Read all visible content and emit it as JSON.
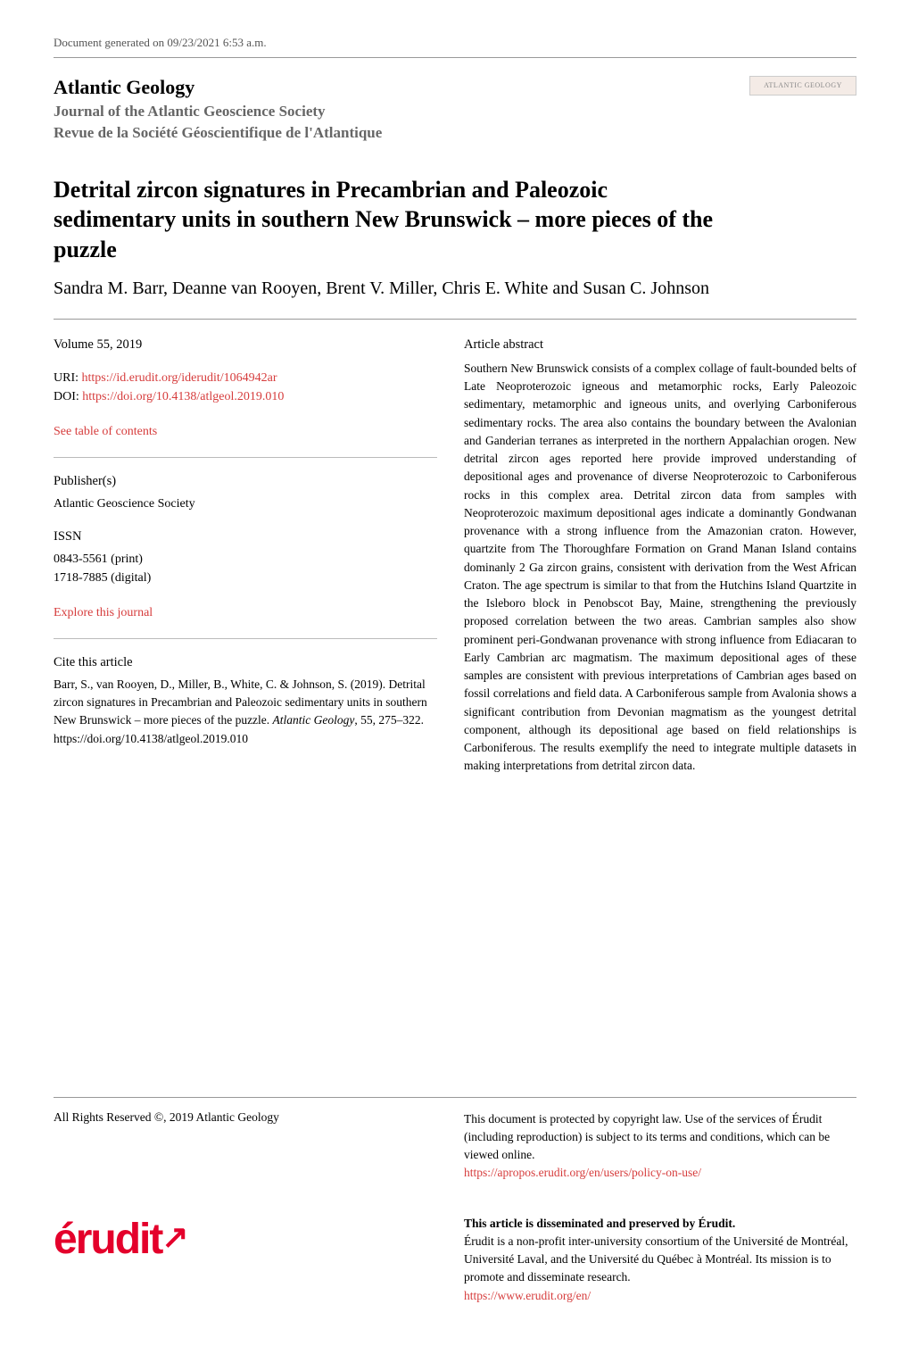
{
  "docGenerated": "Document generated on 09/23/2021 6:53 a.m.",
  "journalTitle": "Atlantic Geology",
  "journalSub1": "Journal of the Atlantic Geoscience Society",
  "journalSub2": "Revue de la Société Géoscientifique de l'Atlantique",
  "logoText": "ATLANTIC GEOLOGY",
  "articleTitle": "Detrital zircon signatures in Precambrian and Paleozoic sedimentary units in southern New Brunswick – more pieces of the puzzle",
  "authors": "Sandra M. Barr, Deanne van Rooyen, Brent V. Miller, Chris E. White and Susan C. Johnson",
  "volumeLine": "Volume 55, 2019",
  "uriLabel": "URI: ",
  "uriLink": "https://id.erudit.org/iderudit/1064942ar",
  "doiLabel": "DOI: ",
  "doiLink": "https://doi.org/10.4138/atlgeol.2019.010",
  "tocLink": "See table of contents",
  "publisherLabel": "Publisher(s)",
  "publisherText": "Atlantic Geoscience Society",
  "issnLabel": "ISSN",
  "issnPrint": "0843-5561 (print)",
  "issnDigital": "1718-7885 (digital)",
  "exploreLink": "Explore this journal",
  "citeLabel": "Cite this article",
  "citeTextPre": "Barr, S., van Rooyen, D., Miller, B., White, C. & Johnson, S. (2019). Detrital zircon signatures in Precambrian and Paleozoic sedimentary units in southern New Brunswick – more pieces of the puzzle. ",
  "citeJournal": "Atlantic Geology",
  "citeTextPost": ", 55, 275–322. https://doi.org/10.4138/atlgeol.2019.010",
  "abstractLabel": "Article abstract",
  "abstractText": "Southern New Brunswick consists of a complex collage of fault-bounded belts of Late Neoproterozoic igneous and metamorphic rocks, Early Paleozoic sedimentary, metamorphic and igneous units, and overlying Carboniferous sedimentary rocks. The area also contains the boundary between the Avalonian and Ganderian terranes as interpreted in the northern Appalachian orogen. New detrital zircon ages reported here provide improved understanding of depositional ages and provenance of diverse Neoproterozoic to Carboniferous rocks in this complex area. Detrital zircon data from samples with Neoproterozoic maximum depositional ages indicate a dominantly Gondwanan provenance with a strong influence from the Amazonian craton. However, quartzite from The Thoroughfare Formation on Grand Manan Island contains dominanly 2 Ga zircon grains, consistent with derivation from the West African Craton. The age spectrum is similar to that from the Hutchins Island Quartzite in the Isleboro block in Penobscot Bay, Maine, strengthening the previously proposed correlation between the two areas. Cambrian samples also show prominent peri-Gondwanan provenance with strong influence from Ediacaran to Early Cambrian arc magmatism. The maximum depositional ages of these samples are consistent with previous interpretations of Cambrian ages based on fossil correlations and field data. A Carboniferous sample from Avalonia shows a significant contribution from Devonian magmatism as the youngest detrital component, although its depositional age based on field relationships is Carboniferous. The results exemplify the need to integrate multiple datasets in making interpretations from detrital zircon data.",
  "copyright": "All Rights Reserved ©, 2019 Atlantic Geology",
  "protectedText": "This document is protected by copyright law. Use of the services of Érudit (including reproduction) is subject to its terms and conditions, which can be viewed online.",
  "policyLink": "https://apropos.erudit.org/en/users/policy-on-use/",
  "dissemTitle": "This article is disseminated and preserved by Érudit.",
  "dissemText": "Érudit is a non-profit inter-university consortium of the Université de Montréal, Université Laval, and the Université du Québec à Montréal. Its mission is to promote and disseminate research.",
  "eruditLink": "https://www.erudit.org/en/",
  "eruditLogoText": "érudit",
  "linkColor": "#d63c3c"
}
